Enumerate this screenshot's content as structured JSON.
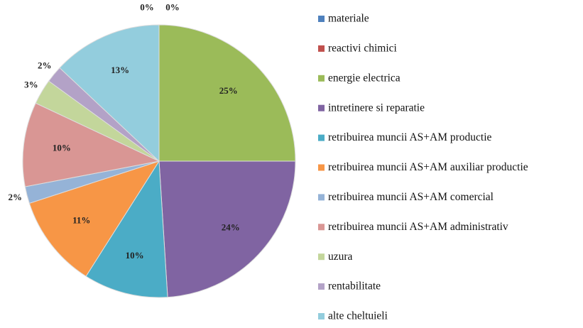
{
  "chart_data": {
    "type": "pie",
    "categories": [
      "materiale",
      "reactivi chimici",
      "energie electrica",
      "intretinere si reparatie",
      "retribuirea muncii AS+AM productie",
      "retribuirea muncii AS+AM auxiliar productie",
      "retribuirea muncii AS+AM comercial",
      "retribuirea muncii AS+AM administrativ",
      "uzura",
      "rentabilitate",
      "alte cheltuieli"
    ],
    "values": [
      0,
      0,
      25,
      24,
      10,
      11,
      2,
      10,
      3,
      2,
      13
    ],
    "value_labels": [
      "0%",
      "0%",
      "25%",
      "24%",
      "10%",
      "11%",
      "2%",
      "10%",
      "3%",
      "2%",
      "13%"
    ],
    "colors": [
      "#4f81bd",
      "#c0504d",
      "#9bbb59",
      "#8064a2",
      "#4bacc6",
      "#f79646",
      "#95b3d7",
      "#d99694",
      "#c3d69b",
      "#b3a2c7",
      "#93cddd"
    ],
    "legend": "right"
  }
}
